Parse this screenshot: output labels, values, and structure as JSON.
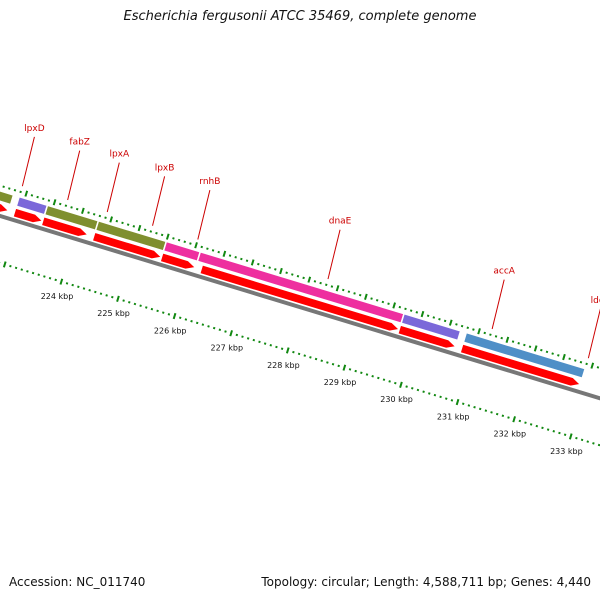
{
  "title": "Escherichia fergusonii ATCC 35469, complete genome",
  "footer": {
    "accession": "Accession: NC_011740",
    "summary": "Topology: circular; Length: 4,588,711 bp; Genes: 4,440"
  },
  "colors": {
    "label": "#cc0000",
    "cds": "#ff0000",
    "tick": "#118811",
    "backbone": "#777777"
  },
  "gene_labels": [
    {
      "name": "lpxD",
      "position_kbp": 222.9
    },
    {
      "name": "fabZ",
      "position_kbp": 223.7
    },
    {
      "name": "lpxA",
      "position_kbp": 224.4
    },
    {
      "name": "lpxB",
      "position_kbp": 225.2
    },
    {
      "name": "rnhB",
      "position_kbp": 226.0
    },
    {
      "name": "dnaE",
      "position_kbp": 228.3
    },
    {
      "name": "accA",
      "position_kbp": 231.2
    },
    {
      "name": "ldcC",
      "position_kbp": 232.9
    }
  ],
  "feature_blocks": [
    {
      "start_kbp": 221.9,
      "end_kbp": 222.8,
      "color": "#7f8f2f",
      "strand": "plus"
    },
    {
      "start_kbp": 222.9,
      "end_kbp": 223.4,
      "color": "#7b68d9",
      "strand": "plus"
    },
    {
      "start_kbp": 223.4,
      "end_kbp": 224.3,
      "color": "#7f8f2f",
      "strand": "plus"
    },
    {
      "start_kbp": 224.3,
      "end_kbp": 225.5,
      "color": "#7f8f2f",
      "strand": "plus"
    },
    {
      "start_kbp": 225.5,
      "end_kbp": 226.1,
      "color": "#ee2f9f",
      "strand": "plus"
    },
    {
      "start_kbp": 226.1,
      "end_kbp": 229.7,
      "color": "#ee2f9f",
      "strand": "plus"
    },
    {
      "start_kbp": 229.7,
      "end_kbp": 230.7,
      "color": "#7b68d9",
      "strand": "plus"
    },
    {
      "start_kbp": 230.8,
      "end_kbp": 232.9,
      "color": "#4f8fc7",
      "strand": "plus"
    }
  ],
  "cds": [
    {
      "start_kbp": 221.9,
      "end_kbp": 222.8
    },
    {
      "start_kbp": 222.9,
      "end_kbp": 223.4
    },
    {
      "start_kbp": 223.4,
      "end_kbp": 224.2
    },
    {
      "start_kbp": 224.3,
      "end_kbp": 225.5
    },
    {
      "start_kbp": 225.5,
      "end_kbp": 226.1
    },
    {
      "start_kbp": 226.2,
      "end_kbp": 229.7
    },
    {
      "start_kbp": 229.7,
      "end_kbp": 230.7
    },
    {
      "start_kbp": 230.8,
      "end_kbp": 232.9
    }
  ],
  "kbp_labels": [
    "224 kbp",
    "225 kbp",
    "226 kbp",
    "227 kbp",
    "228 kbp",
    "229 kbp",
    "230 kbp",
    "231 kbp",
    "232 kbp",
    "233 kbp"
  ]
}
